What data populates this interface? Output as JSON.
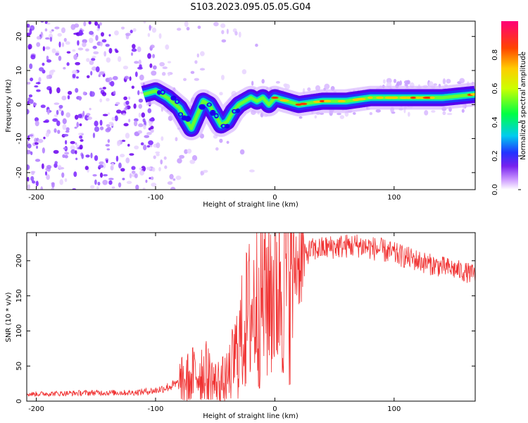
{
  "title": "S103.2023.095.05.05.G04",
  "chart_data": [
    {
      "type": "heatmap",
      "name": "spectrogram",
      "xlabel": "Height of straight line (km)",
      "ylabel": "Frequency (Hz)",
      "xlim": [
        -208,
        168
      ],
      "ylim": [
        -25,
        24.5
      ],
      "xticks": [
        -200,
        -100,
        0,
        100
      ],
      "yticks": [
        -20,
        -10,
        0,
        10,
        20
      ],
      "colorbar": {
        "label": "Normalized spectral amplitude",
        "range": [
          0,
          1
        ],
        "ticks": [
          0.0,
          0.2,
          0.4,
          0.6,
          0.8
        ],
        "tick_labels": [
          "0.0",
          "0.2",
          "0.4",
          "0.6",
          "0.8"
        ]
      },
      "ridge": {
        "x": [
          -110,
          -100,
          -90,
          -80,
          -75,
          -70,
          -65,
          -60,
          -55,
          -50,
          -45,
          -40,
          -35,
          -30,
          -25,
          -20,
          -15,
          -10,
          -5,
          0,
          10,
          20,
          40,
          60,
          80,
          100,
          120,
          140,
          168
        ],
        "y": [
          3,
          4,
          2,
          -1,
          -4,
          -7,
          -3,
          1,
          0,
          -3,
          -6,
          -5,
          -2,
          0,
          1,
          2,
          1,
          2,
          0,
          2,
          1,
          0,
          1,
          1,
          2,
          2,
          2,
          2,
          3
        ]
      }
    },
    {
      "type": "line",
      "name": "snr",
      "xlabel": "Height of straight line (km)",
      "ylabel": "SNR (10 * v/v)",
      "xlim": [
        -208,
        168
      ],
      "ylim": [
        0,
        240
      ],
      "xticks": [
        -200,
        -100,
        0,
        100
      ],
      "yticks": [
        0,
        50,
        100,
        150,
        200
      ],
      "color": "#f03030",
      "envelope": {
        "x": [
          -208,
          -150,
          -120,
          -100,
          -90,
          -80,
          -70,
          -60,
          -50,
          -40,
          -30,
          -25,
          -20,
          -10,
          0,
          10,
          20,
          30,
          50,
          70,
          90,
          110,
          130,
          150,
          168
        ],
        "y": [
          10,
          12,
          12,
          15,
          20,
          25,
          35,
          45,
          25,
          30,
          80,
          110,
          130,
          150,
          170,
          180,
          200,
          215,
          220,
          222,
          215,
          205,
          195,
          188,
          180
        ]
      }
    }
  ]
}
